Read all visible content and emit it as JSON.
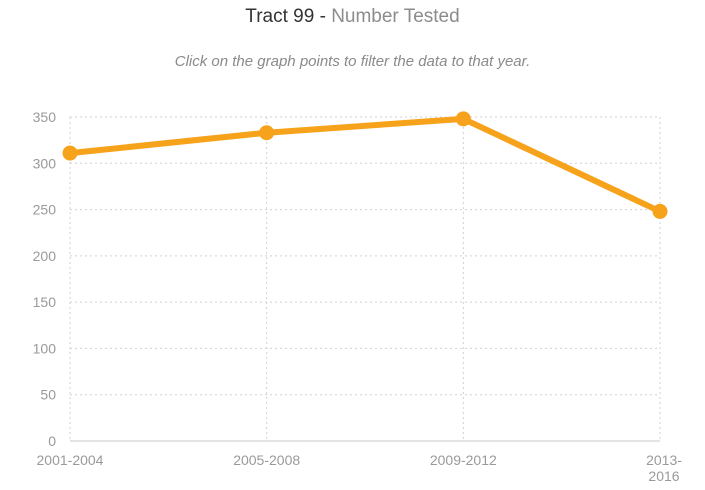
{
  "header": {
    "title_main": "Tract 99",
    "title_separator": " - ",
    "title_metric": "Number Tested",
    "hint": "Click on the graph points to filter the data to that year."
  },
  "colors": {
    "line": "#F7A21B",
    "grid": "#d0d0d0",
    "text": "#9a9a9a"
  },
  "chart_data": {
    "type": "line",
    "title": "Tract 99 - Number Tested",
    "categories": [
      "2001-2004",
      "2005-2008",
      "2009-2012",
      "2013-2016"
    ],
    "category_labels": [
      [
        "2001-2004"
      ],
      [
        "2005-2008"
      ],
      [
        "2009-2012"
      ],
      [
        "2013-",
        "2016"
      ]
    ],
    "values": [
      311,
      333,
      348,
      248
    ],
    "ylim": [
      0,
      350
    ],
    "yticks": [
      0,
      50,
      100,
      150,
      200,
      250,
      300,
      350
    ],
    "grid": true,
    "xlabel": "",
    "ylabel": ""
  }
}
